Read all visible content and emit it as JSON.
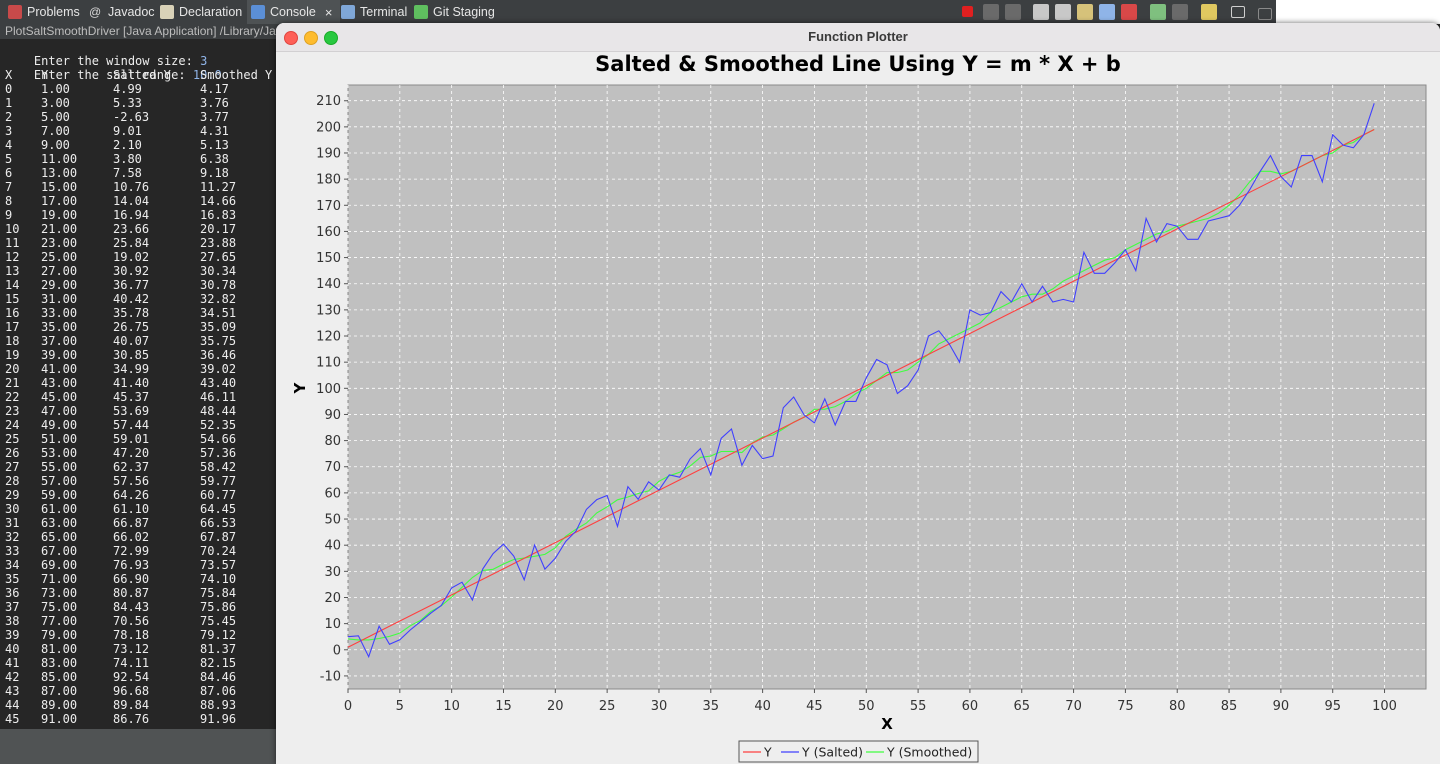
{
  "tabs": [
    {
      "label": "Problems",
      "icon": "problems-icon",
      "active": false
    },
    {
      "label": "Javadoc",
      "icon": "javadoc-icon",
      "active": false
    },
    {
      "label": "Declaration",
      "icon": "declaration-icon",
      "active": false
    },
    {
      "label": "Console",
      "icon": "console-icon",
      "active": true,
      "close": "×"
    },
    {
      "label": "Terminal",
      "icon": "terminal-icon",
      "active": false
    },
    {
      "label": "Git Staging",
      "icon": "git-staging-icon",
      "active": false
    }
  ],
  "toolbar_icons": [
    "terminate-icon",
    "remove-launch-icon",
    "remove-all-icon",
    "clear-console-icon",
    "scroll-lock-icon",
    "word-wrap-icon",
    "pin-console-icon",
    "show-on-output-icon",
    "display-console-icon",
    "new-console-icon",
    "open-console-icon",
    "minimize-icon",
    "maximize-icon"
  ],
  "console": {
    "header": "PlotSaltSmoothDriver [Java Application] /Library/Java/",
    "prompt_window": "Enter the window size: ",
    "window_value": "3",
    "prompt_salt": "Enter the salt range: ",
    "salt_value": "10.0",
    "columns": [
      "X",
      "Y",
      "Salted Y",
      "Smoothed Y"
    ],
    "rows": [
      [
        "0",
        "1.00",
        "4.99",
        "4.17"
      ],
      [
        "1",
        "3.00",
        "5.33",
        "3.76"
      ],
      [
        "2",
        "5.00",
        "-2.63",
        "3.77"
      ],
      [
        "3",
        "7.00",
        "9.01",
        "4.31"
      ],
      [
        "4",
        "9.00",
        "2.10",
        "5.13"
      ],
      [
        "5",
        "11.00",
        "3.80",
        "6.38"
      ],
      [
        "6",
        "13.00",
        "7.58",
        "9.18"
      ],
      [
        "7",
        "15.00",
        "10.76",
        "11.27"
      ],
      [
        "8",
        "17.00",
        "14.04",
        "14.66"
      ],
      [
        "9",
        "19.00",
        "16.94",
        "16.83"
      ],
      [
        "10",
        "21.00",
        "23.66",
        "20.17"
      ],
      [
        "11",
        "23.00",
        "25.84",
        "23.88"
      ],
      [
        "12",
        "25.00",
        "19.02",
        "27.65"
      ],
      [
        "13",
        "27.00",
        "30.92",
        "30.34"
      ],
      [
        "14",
        "29.00",
        "36.77",
        "30.78"
      ],
      [
        "15",
        "31.00",
        "40.42",
        "32.82"
      ],
      [
        "16",
        "33.00",
        "35.78",
        "34.51"
      ],
      [
        "17",
        "35.00",
        "26.75",
        "35.09"
      ],
      [
        "18",
        "37.00",
        "40.07",
        "35.75"
      ],
      [
        "19",
        "39.00",
        "30.85",
        "36.46"
      ],
      [
        "20",
        "41.00",
        "34.99",
        "39.02"
      ],
      [
        "21",
        "43.00",
        "41.40",
        "43.40"
      ],
      [
        "22",
        "45.00",
        "45.37",
        "46.11"
      ],
      [
        "23",
        "47.00",
        "53.69",
        "48.44"
      ],
      [
        "24",
        "49.00",
        "57.44",
        "52.35"
      ],
      [
        "25",
        "51.00",
        "59.01",
        "54.66"
      ],
      [
        "26",
        "53.00",
        "47.20",
        "57.36"
      ],
      [
        "27",
        "55.00",
        "62.37",
        "58.42"
      ],
      [
        "28",
        "57.00",
        "57.56",
        "59.77"
      ],
      [
        "29",
        "59.00",
        "64.26",
        "60.77"
      ],
      [
        "30",
        "61.00",
        "61.10",
        "64.45"
      ],
      [
        "31",
        "63.00",
        "66.87",
        "66.53"
      ],
      [
        "32",
        "65.00",
        "66.02",
        "67.87"
      ],
      [
        "33",
        "67.00",
        "72.99",
        "70.24"
      ],
      [
        "34",
        "69.00",
        "76.93",
        "73.57"
      ],
      [
        "35",
        "71.00",
        "66.90",
        "74.10"
      ],
      [
        "36",
        "73.00",
        "80.87",
        "75.84"
      ],
      [
        "37",
        "75.00",
        "84.43",
        "75.86"
      ],
      [
        "38",
        "77.00",
        "70.56",
        "75.45"
      ],
      [
        "39",
        "79.00",
        "78.18",
        "79.12"
      ],
      [
        "40",
        "81.00",
        "73.12",
        "81.37"
      ],
      [
        "41",
        "83.00",
        "74.11",
        "82.15"
      ],
      [
        "42",
        "85.00",
        "92.54",
        "84.46"
      ],
      [
        "43",
        "87.00",
        "96.68",
        "87.06"
      ],
      [
        "44",
        "89.00",
        "89.84",
        "88.93"
      ],
      [
        "45",
        "91.00",
        "86.76",
        "91.96"
      ]
    ]
  },
  "window": {
    "title": "Function Plotter",
    "buttons": [
      "close-button",
      "minimize-button",
      "zoom-button"
    ]
  },
  "colors": {
    "plot_background": "#c0c0c0",
    "grid": "#ffffff",
    "line_y": "#ff4040",
    "line_salted": "#4040ff",
    "line_smoothed": "#40ff40",
    "traffic_close": "#fe5f57",
    "traffic_min": "#febc2e",
    "traffic_zoom": "#28c840"
  },
  "chart_data": {
    "type": "line",
    "title": "Salted & Smoothed Line Using Y = m * X + b",
    "xlabel": "X",
    "ylabel": "Y",
    "xlim": [
      0,
      104
    ],
    "ylim": [
      -15,
      216
    ],
    "xticks": [
      0,
      5,
      10,
      15,
      20,
      25,
      30,
      35,
      40,
      45,
      50,
      55,
      60,
      65,
      70,
      75,
      80,
      85,
      90,
      95,
      100
    ],
    "yticks": [
      -10,
      0,
      10,
      20,
      30,
      40,
      50,
      60,
      70,
      80,
      90,
      100,
      110,
      120,
      130,
      140,
      150,
      160,
      170,
      180,
      190,
      200,
      210
    ],
    "grid": true,
    "legend_position": "bottom",
    "series": [
      {
        "name": "Y",
        "color": "#ff4040",
        "x": [
          0,
          99
        ],
        "y": [
          1,
          199
        ]
      },
      {
        "name": "Y (Salted)",
        "color": "#4040ff",
        "y": [
          4.99,
          5.33,
          -2.63,
          9.01,
          2.1,
          3.8,
          7.58,
          10.76,
          14.04,
          16.94,
          23.66,
          25.84,
          19.02,
          30.92,
          36.77,
          40.42,
          35.78,
          26.75,
          40.07,
          30.85,
          34.99,
          41.4,
          45.37,
          53.69,
          57.44,
          59.01,
          47.2,
          62.37,
          57.56,
          64.26,
          61.1,
          66.87,
          66.02,
          72.99,
          76.93,
          66.9,
          80.87,
          84.43,
          70.56,
          78.18,
          73.12,
          74.11,
          92.54,
          96.68,
          89.84,
          86.76,
          96,
          86,
          95,
          95,
          104,
          111,
          109,
          98,
          101,
          107,
          120,
          122,
          117,
          110,
          130,
          128,
          129,
          137,
          133,
          140,
          133,
          139,
          133,
          134,
          133,
          152,
          144,
          144,
          148,
          153,
          145,
          165,
          156,
          163,
          162,
          157,
          157,
          164,
          165,
          166,
          170,
          176,
          183,
          189,
          181,
          177,
          189,
          189,
          179,
          197,
          193,
          192,
          197,
          209
        ]
      },
      {
        "name": "Y (Smoothed)",
        "color": "#40ff40",
        "y": [
          4.17,
          3.76,
          3.77,
          4.31,
          5.13,
          6.38,
          9.18,
          11.27,
          14.66,
          16.83,
          20.17,
          23.88,
          27.65,
          30.34,
          30.78,
          32.82,
          34.51,
          35.09,
          35.75,
          36.46,
          39.02,
          43.4,
          46.11,
          48.44,
          52.35,
          54.66,
          57.36,
          58.42,
          59.77,
          60.77,
          64.45,
          66.53,
          67.87,
          70.24,
          73.57,
          74.1,
          75.84,
          75.86,
          75.45,
          79.12,
          81.37,
          82.15,
          84.46,
          87.06,
          88.93,
          91.96,
          92,
          93,
          95,
          98,
          100,
          103,
          106,
          106,
          107,
          110,
          113,
          117,
          119,
          121,
          123,
          125,
          129,
          131,
          133,
          135,
          136,
          136,
          138,
          141,
          143,
          145,
          147,
          149,
          150,
          153,
          155,
          157,
          159,
          160,
          162,
          163,
          164,
          165,
          167,
          170,
          174,
          179,
          183,
          183,
          182,
          183,
          185,
          187,
          189,
          190,
          193,
          194,
          197,
          199
        ]
      }
    ]
  }
}
